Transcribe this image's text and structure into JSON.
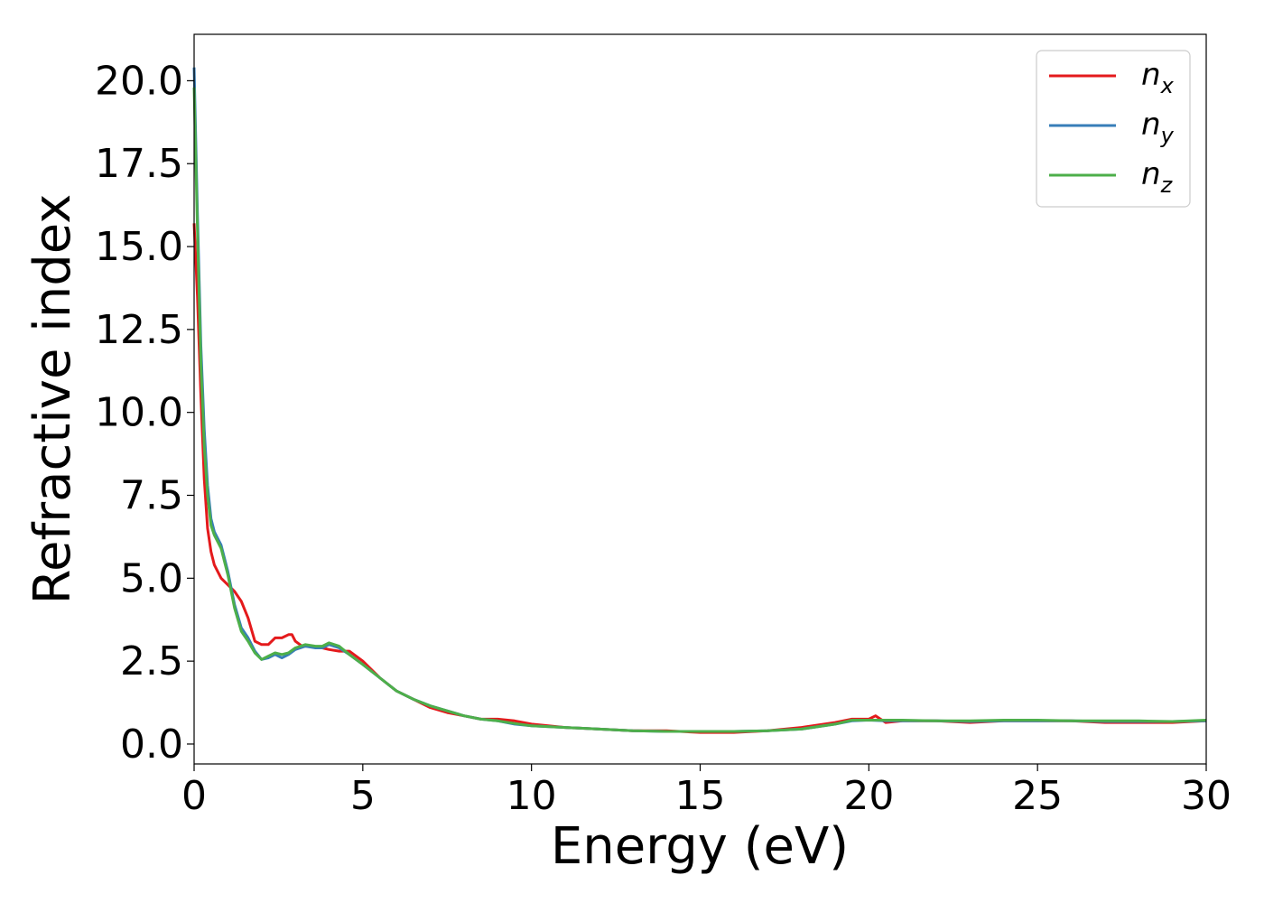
{
  "chart_data": {
    "type": "line",
    "title": "",
    "xlabel": "Energy (eV)",
    "ylabel": "Refractive index",
    "xlim": [
      0,
      30
    ],
    "ylim": [
      -0.6,
      21.4
    ],
    "xticks": [
      0,
      5,
      10,
      15,
      20,
      25,
      30
    ],
    "yticks": [
      0.0,
      2.5,
      5.0,
      7.5,
      10.0,
      12.5,
      15.0,
      17.5,
      20.0
    ],
    "xtick_labels": [
      "0",
      "5",
      "10",
      "15",
      "20",
      "25",
      "30"
    ],
    "ytick_labels": [
      "0.0",
      "2.5",
      "5.0",
      "7.5",
      "10.0",
      "12.5",
      "15.0",
      "17.5",
      "20.0"
    ],
    "grid": false,
    "legend_position": "top-right",
    "series": [
      {
        "name": "n",
        "subscript": "x",
        "color": "#e41a1c",
        "x": [
          0.0,
          0.1,
          0.2,
          0.3,
          0.4,
          0.5,
          0.6,
          0.8,
          1.0,
          1.2,
          1.4,
          1.6,
          1.8,
          2.0,
          2.2,
          2.4,
          2.6,
          2.8,
          2.9,
          3.0,
          3.2,
          3.5,
          3.8,
          4.0,
          4.3,
          4.6,
          5.0,
          5.5,
          6.0,
          6.5,
          7.0,
          7.5,
          8.0,
          8.5,
          9.0,
          9.5,
          10.0,
          11.0,
          12.0,
          13.0,
          14.0,
          15.0,
          16.0,
          17.0,
          18.0,
          19.0,
          19.5,
          20.0,
          20.2,
          20.5,
          21.0,
          22.0,
          23.0,
          24.0,
          25.0,
          26.0,
          27.0,
          28.0,
          29.0,
          30.0
        ],
        "y": [
          15.7,
          13.5,
          10.5,
          8.0,
          6.5,
          5.8,
          5.4,
          5.0,
          4.8,
          4.6,
          4.3,
          3.8,
          3.1,
          3.0,
          3.0,
          3.2,
          3.2,
          3.3,
          3.3,
          3.1,
          2.95,
          2.95,
          2.9,
          2.85,
          2.8,
          2.8,
          2.5,
          2.0,
          1.6,
          1.35,
          1.1,
          0.95,
          0.85,
          0.75,
          0.75,
          0.7,
          0.6,
          0.5,
          0.45,
          0.4,
          0.4,
          0.35,
          0.35,
          0.4,
          0.5,
          0.65,
          0.75,
          0.75,
          0.85,
          0.65,
          0.7,
          0.7,
          0.65,
          0.7,
          0.7,
          0.7,
          0.65,
          0.65,
          0.65,
          0.7
        ]
      },
      {
        "name": "n",
        "subscript": "y",
        "color": "#377eb8",
        "x": [
          0.0,
          0.1,
          0.2,
          0.3,
          0.4,
          0.5,
          0.6,
          0.8,
          1.0,
          1.2,
          1.4,
          1.6,
          1.8,
          2.0,
          2.2,
          2.4,
          2.6,
          2.8,
          3.0,
          3.3,
          3.6,
          3.8,
          4.0,
          4.3,
          4.6,
          5.0,
          5.5,
          6.0,
          6.5,
          7.0,
          7.5,
          8.0,
          8.5,
          9.0,
          9.5,
          10.0,
          11.0,
          12.0,
          13.0,
          14.0,
          15.0,
          16.0,
          17.0,
          18.0,
          19.0,
          19.5,
          20.0,
          20.5,
          21.0,
          22.0,
          23.0,
          24.0,
          25.0,
          26.0,
          27.0,
          28.0,
          29.0,
          30.0
        ],
        "y": [
          20.4,
          16.0,
          12.0,
          9.5,
          7.8,
          6.8,
          6.4,
          6.0,
          5.2,
          4.2,
          3.5,
          3.2,
          2.8,
          2.55,
          2.6,
          2.7,
          2.6,
          2.7,
          2.85,
          2.95,
          2.9,
          2.9,
          3.0,
          2.9,
          2.7,
          2.4,
          2.0,
          1.6,
          1.35,
          1.15,
          1.0,
          0.85,
          0.75,
          0.7,
          0.6,
          0.55,
          0.5,
          0.45,
          0.4,
          0.38,
          0.38,
          0.38,
          0.4,
          0.45,
          0.6,
          0.7,
          0.72,
          0.7,
          0.7,
          0.7,
          0.68,
          0.7,
          0.7,
          0.7,
          0.68,
          0.68,
          0.68,
          0.7
        ]
      },
      {
        "name": "n",
        "subscript": "z",
        "color": "#4daf4a",
        "x": [
          0.0,
          0.1,
          0.2,
          0.3,
          0.4,
          0.5,
          0.6,
          0.8,
          1.0,
          1.2,
          1.4,
          1.6,
          1.8,
          2.0,
          2.2,
          2.4,
          2.6,
          2.8,
          3.0,
          3.3,
          3.6,
          3.8,
          4.0,
          4.3,
          4.6,
          5.0,
          5.5,
          6.0,
          6.5,
          7.0,
          7.5,
          8.0,
          8.5,
          9.0,
          9.5,
          10.0,
          11.0,
          12.0,
          13.0,
          14.0,
          15.0,
          16.0,
          17.0,
          18.0,
          19.0,
          19.5,
          20.0,
          20.5,
          21.0,
          22.0,
          23.0,
          24.0,
          25.0,
          26.0,
          27.0,
          28.0,
          29.0,
          30.0
        ],
        "y": [
          19.8,
          15.5,
          11.5,
          9.0,
          7.5,
          6.6,
          6.3,
          5.9,
          5.1,
          4.1,
          3.4,
          3.1,
          2.75,
          2.55,
          2.65,
          2.75,
          2.7,
          2.75,
          2.9,
          3.0,
          2.95,
          2.95,
          3.05,
          2.95,
          2.7,
          2.4,
          2.0,
          1.6,
          1.35,
          1.15,
          1.0,
          0.85,
          0.75,
          0.7,
          0.62,
          0.55,
          0.5,
          0.45,
          0.4,
          0.38,
          0.38,
          0.38,
          0.4,
          0.45,
          0.6,
          0.72,
          0.72,
          0.72,
          0.72,
          0.7,
          0.7,
          0.72,
          0.72,
          0.7,
          0.7,
          0.7,
          0.68,
          0.72
        ]
      }
    ]
  }
}
